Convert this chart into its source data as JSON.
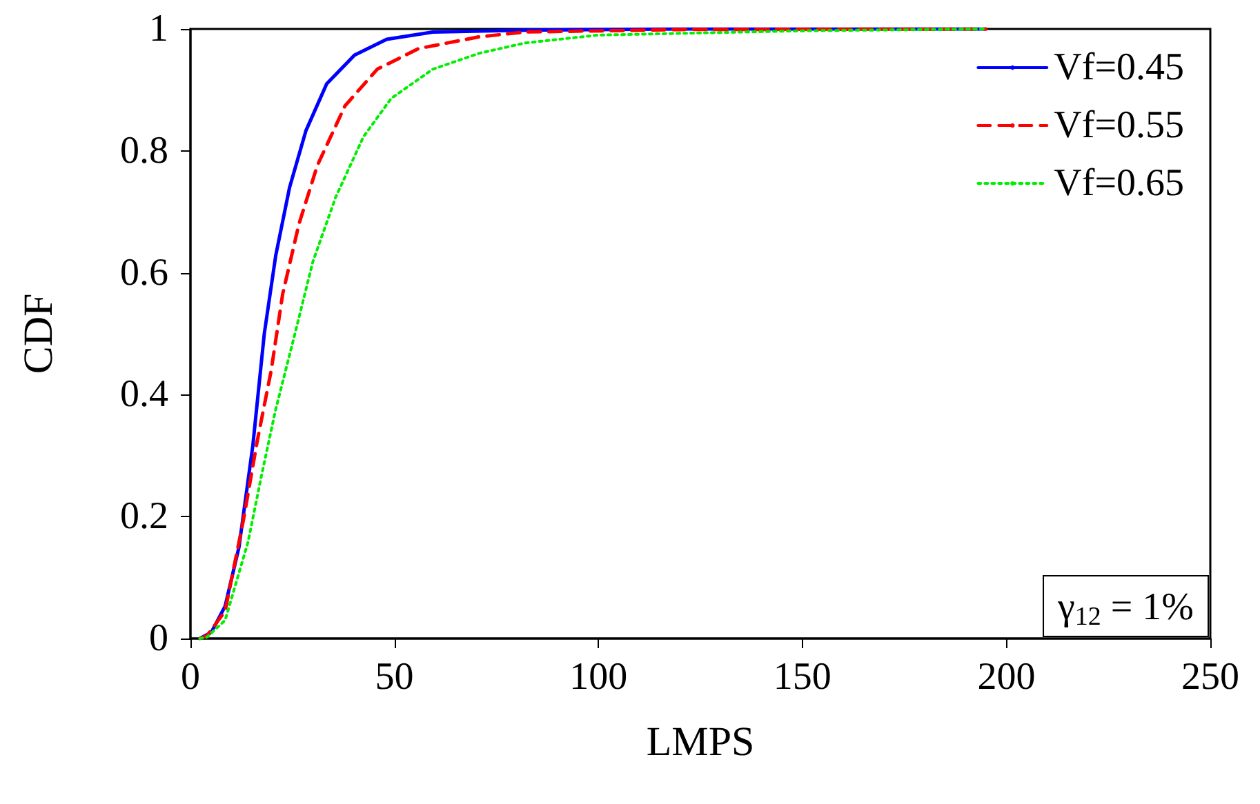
{
  "chart_data": {
    "type": "line",
    "xlabel": "LMPS",
    "ylabel": "CDF",
    "xlim": [
      0,
      250
    ],
    "xticks": [
      0,
      50,
      100,
      150,
      200,
      250
    ],
    "ylim": [
      0,
      1
    ],
    "yticks": [
      0,
      0.2,
      0.4,
      0.6,
      0.8,
      1
    ],
    "grid": false,
    "legend": "top right",
    "marker": "none",
    "annotations": [
      "γ$_{12}$ = 1%"
    ],
    "series": [
      {
        "name": "Vf=0.45",
        "color": "#0000ff",
        "line_style": "solid",
        "x": [
          2.3,
          5.1,
          8.5,
          11.9,
          15.3,
          18.1,
          20.9,
          24.3,
          28.3,
          33.4,
          40.2,
          48.1,
          59.4,
          82,
          120,
          195
        ],
        "values": [
          0,
          0.01,
          0.053,
          0.15,
          0.317,
          0.5,
          0.628,
          0.74,
          0.833,
          0.91,
          0.957,
          0.983,
          0.995,
          0.998,
          1,
          1
        ]
      },
      {
        "name": "Vf=0.55",
        "color": "#ff0000",
        "line_style": "dashed",
        "x": [
          2.3,
          4,
          8.5,
          13,
          16.4,
          19.8,
          22.6,
          26.6,
          31.1,
          37.9,
          45.8,
          56,
          70.7,
          82,
          120,
          195
        ],
        "values": [
          0,
          0.004,
          0.045,
          0.195,
          0.325,
          0.44,
          0.565,
          0.68,
          0.776,
          0.874,
          0.934,
          0.968,
          0.987,
          0.995,
          0.999,
          1
        ]
      },
      {
        "name": "Vf=0.65",
        "color": "#00ee00",
        "line_style": "dotted",
        "x": [
          2.3,
          4,
          8.5,
          14.1,
          17.5,
          20.9,
          25.5,
          30,
          35.6,
          42.4,
          49.2,
          59.4,
          70.7,
          82,
          100,
          150,
          195
        ],
        "values": [
          0,
          0.002,
          0.03,
          0.158,
          0.27,
          0.376,
          0.497,
          0.618,
          0.724,
          0.823,
          0.886,
          0.934,
          0.96,
          0.977,
          0.99,
          0.997,
          1
        ]
      }
    ]
  }
}
